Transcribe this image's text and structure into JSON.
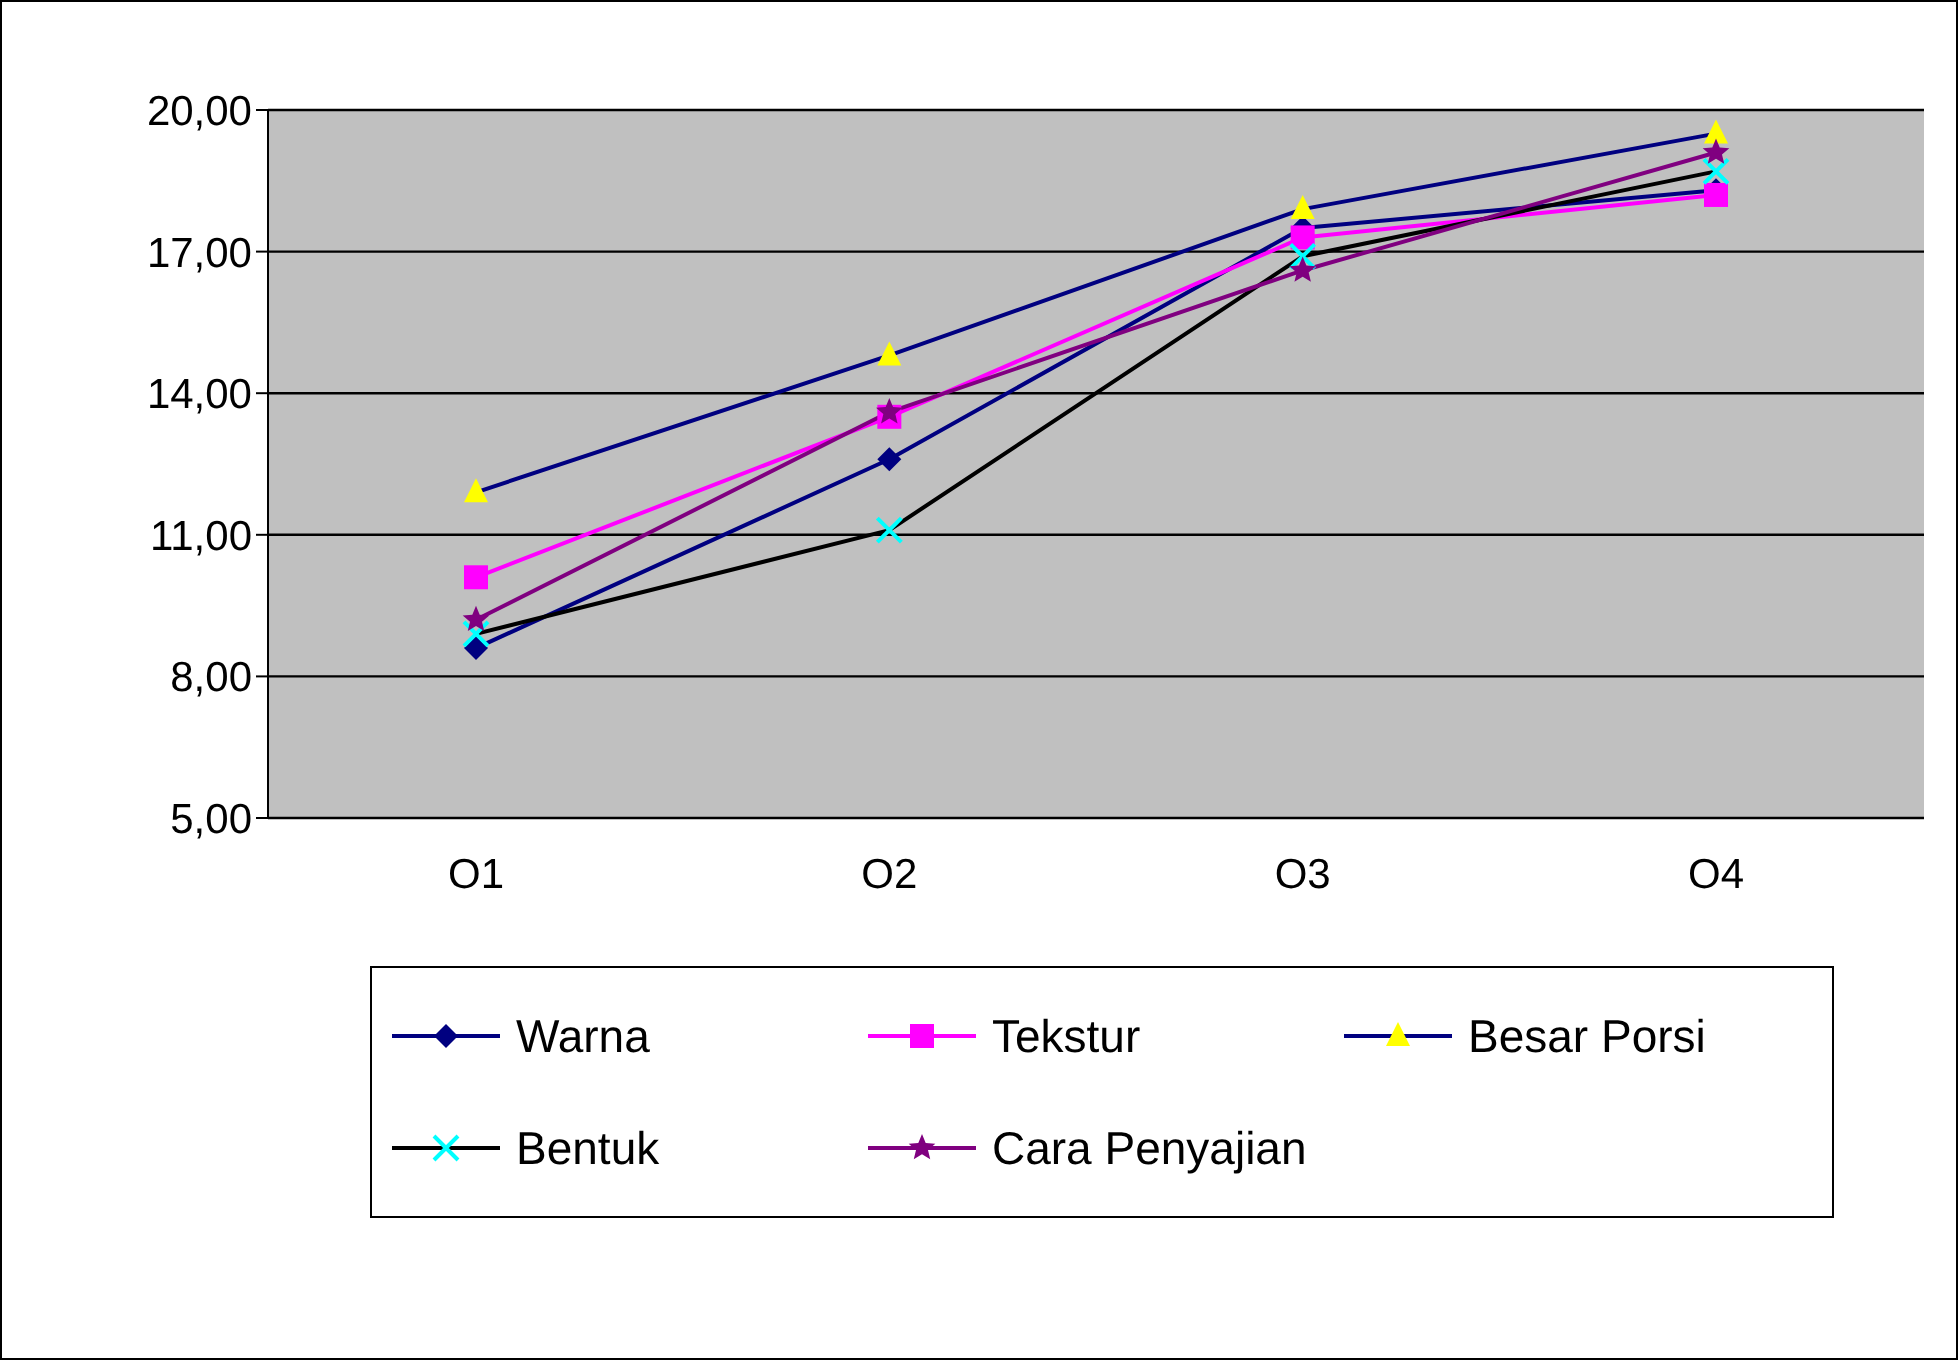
{
  "chart_data": {
    "type": "line",
    "categories": [
      "O1",
      "O2",
      "O3",
      "O4"
    ],
    "series": [
      {
        "name": "Warna",
        "color": "#000080",
        "colors": [
          "#000080",
          "#000080",
          "#000080",
          "#000080"
        ],
        "marker": "diamond",
        "values": [
          8.6,
          12.6,
          17.5,
          18.3
        ]
      },
      {
        "name": "Tekstur",
        "color": "#ff00ff",
        "colors": [
          "#ff00ff",
          "#ff00ff",
          "#ff00ff",
          "#ff00ff"
        ],
        "marker": "square",
        "values": [
          10.1,
          13.5,
          17.3,
          18.2
        ]
      },
      {
        "name": "Besar Porsi",
        "color": "#000080",
        "colors": [
          "#ffff00",
          "#ffff00",
          "#ffff00",
          "#ffff00"
        ],
        "marker": "triangle",
        "values": [
          11.9,
          14.8,
          17.9,
          19.5
        ]
      },
      {
        "name": "Bentuk",
        "color": "#000000",
        "colors": [
          "#00ffff",
          "#00ffff",
          "#00ffff",
          "#00ffff"
        ],
        "marker": "cross",
        "values": [
          8.9,
          11.1,
          16.9,
          18.7
        ]
      },
      {
        "name": "Cara Penyajian",
        "color": "#800080",
        "colors": [
          "#800080",
          "#800080",
          "#800080",
          "#800080"
        ],
        "marker": "star",
        "values": [
          9.2,
          13.6,
          16.6,
          19.1
        ]
      }
    ],
    "ylim": [
      5,
      20
    ],
    "yticks": [
      {
        "value": 5,
        "label": "5,00"
      },
      {
        "value": 8,
        "label": "8,00"
      },
      {
        "value": 11,
        "label": "11,00"
      },
      {
        "value": 14,
        "label": "14,00"
      },
      {
        "value": 17,
        "label": "17,00"
      },
      {
        "value": 20,
        "label": "20,00"
      }
    ],
    "grid": "y",
    "legend": "bottom",
    "line_style": "solid"
  }
}
